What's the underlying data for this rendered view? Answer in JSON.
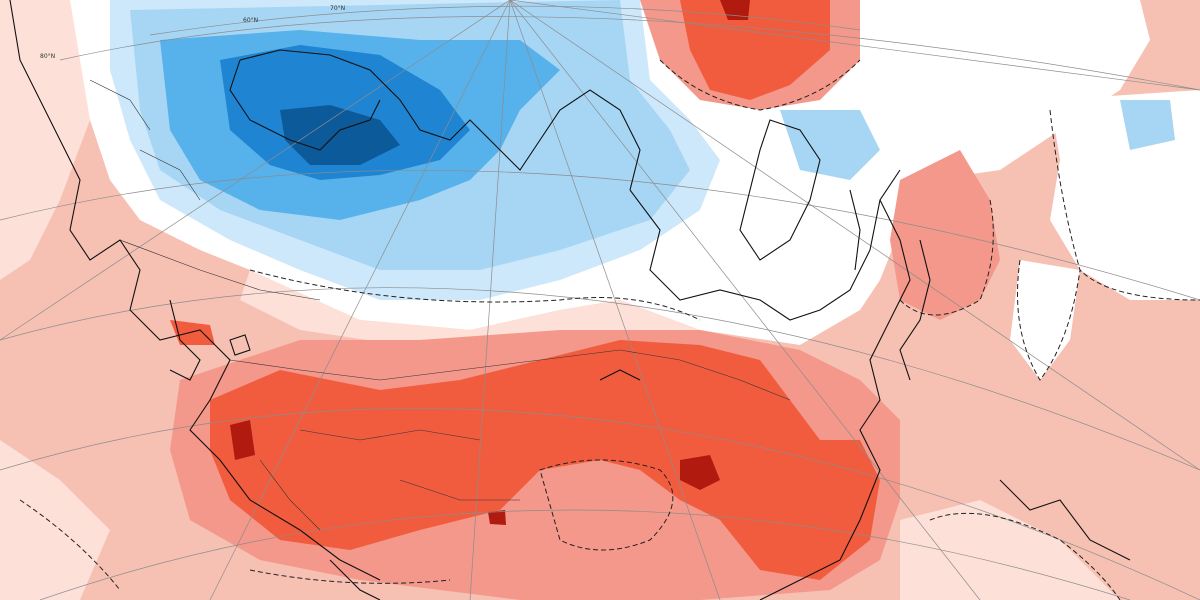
{
  "map": {
    "latitude_labels": [
      "80°N",
      "70°N",
      "60°N"
    ],
    "colors": {
      "warm_light": "#f6c0b3",
      "warm_pale": "#fde0d8",
      "warm_medium": "#f3988a",
      "warm_strong": "#f25c3e",
      "warm_extreme": "#b11a0f",
      "neutral": "#ffffff",
      "cool_pale": "#cde8fb",
      "cool_light": "#a7d6f5",
      "cool_medium": "#57b1ea",
      "cool_strong": "#1f84d1",
      "cool_extreme": "#0d5a9a"
    },
    "icons": [
      "coastline-icon",
      "graticule-icon",
      "contour-icon"
    ]
  }
}
